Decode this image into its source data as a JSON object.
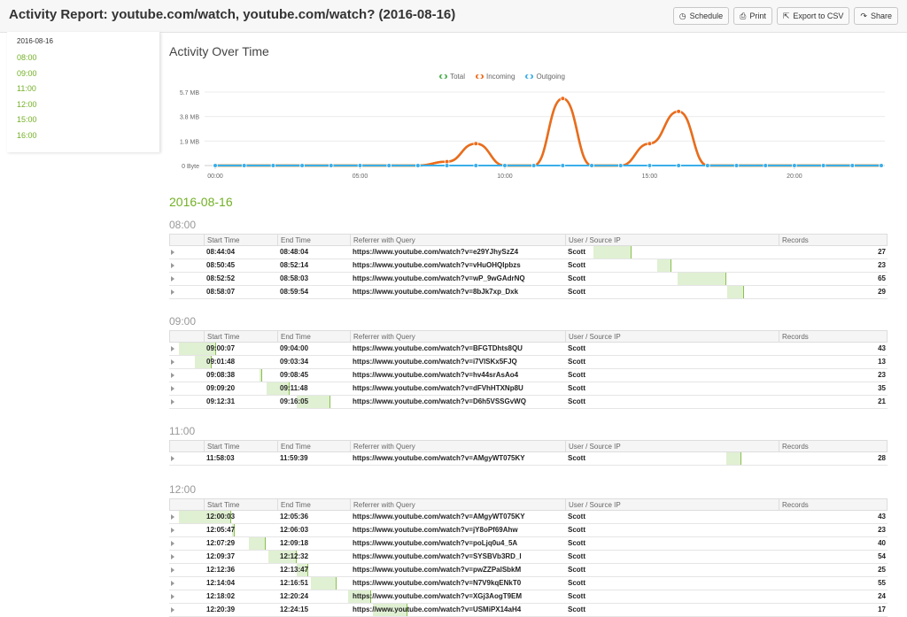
{
  "header": {
    "title": "Activity Report: youtube.com/watch, youtube.com/watch? (2016-08-16)",
    "buttons": [
      {
        "label": "Schedule",
        "icon": "clock-icon"
      },
      {
        "label": "Print",
        "icon": "printer-icon"
      },
      {
        "label": "Export to CSV",
        "icon": "export-icon"
      },
      {
        "label": "Share",
        "icon": "share-icon"
      }
    ]
  },
  "sidebar": {
    "date": "2016-08-16",
    "hours": [
      "08:00",
      "09:00",
      "11:00",
      "12:00",
      "15:00",
      "16:00"
    ]
  },
  "chart": {
    "title": "Activity Over Time",
    "legend": [
      {
        "name": "Total",
        "color": "#4caf50"
      },
      {
        "name": "Incoming",
        "color": "#f06a1b"
      },
      {
        "name": "Outgoing",
        "color": "#3aaee8"
      }
    ]
  },
  "chart_data": {
    "type": "line",
    "title": "Activity Over Time",
    "xlabel": "",
    "ylabel": "",
    "x": [
      0,
      1,
      2,
      3,
      4,
      5,
      6,
      7,
      8,
      9,
      10,
      11,
      12,
      13,
      14,
      15,
      16,
      17,
      18,
      19,
      20,
      21,
      22,
      23
    ],
    "x_tick_labels": [
      "00:00",
      "05:00",
      "10:00",
      "15:00",
      "20:00"
    ],
    "y_tick_labels": [
      "0 Byte",
      "1.9 MB",
      "3.8 MB",
      "5.7 MB"
    ],
    "ylim": [
      0,
      5.7
    ],
    "y_unit": "MB",
    "series": [
      {
        "name": "Total",
        "values": [
          0,
          0,
          0,
          0,
          0,
          0,
          0,
          0,
          0.3,
          1.7,
          0,
          0,
          5.2,
          0,
          0,
          1.7,
          4.2,
          0,
          0,
          0,
          0,
          0,
          0,
          0
        ]
      },
      {
        "name": "Incoming",
        "values": [
          0,
          0,
          0,
          0,
          0,
          0,
          0,
          0,
          0.3,
          1.7,
          0,
          0,
          5.2,
          0,
          0,
          1.7,
          4.2,
          0,
          0,
          0,
          0,
          0,
          0,
          0
        ]
      },
      {
        "name": "Outgoing",
        "values": [
          0,
          0,
          0,
          0,
          0,
          0,
          0,
          0,
          0,
          0,
          0,
          0,
          0,
          0,
          0,
          0,
          0,
          0,
          0,
          0,
          0,
          0,
          0,
          0
        ]
      }
    ],
    "grid": true,
    "legend_position": "top-center"
  },
  "report": {
    "date": "2016-08-16",
    "columns": [
      "Start Time",
      "End Time",
      "Referrer with Query",
      "User / Source IP",
      "Records"
    ],
    "groups": [
      {
        "hour": "08:00",
        "rows": [
          {
            "start": "08:44:04",
            "end": "08:48:04",
            "ref": "https://www.youtube.com/watch?v=e29YJhySzZ4",
            "user": "Scott",
            "records": "27",
            "bar_start": 0.733,
            "bar_len": 0.067
          },
          {
            "start": "08:50:45",
            "end": "08:52:14",
            "ref": "https://www.youtube.com/watch?v=vHuOHQIpbzs",
            "user": "Scott",
            "records": "23",
            "bar_start": 0.845,
            "bar_len": 0.025
          },
          {
            "start": "08:52:52",
            "end": "08:58:03",
            "ref": "https://www.youtube.com/watch?v=wP_9wGAdrNQ",
            "user": "Scott",
            "records": "65",
            "bar_start": 0.881,
            "bar_len": 0.086
          },
          {
            "start": "08:58:07",
            "end": "08:59:54",
            "ref": "https://www.youtube.com/watch?v=8bJk7xp_Dxk",
            "user": "Scott",
            "records": "29",
            "bar_start": 0.969,
            "bar_len": 0.03
          }
        ]
      },
      {
        "hour": "09:00",
        "rows": [
          {
            "start": "09:00:07",
            "end": "09:04:00",
            "ref": "https://www.youtube.com/watch?v=BFGTDhts8QU",
            "user": "Scott",
            "records": "43",
            "bar_start": 0.002,
            "bar_len": 0.065
          },
          {
            "start": "09:01:48",
            "end": "09:03:34",
            "ref": "https://www.youtube.com/watch?v=i7VlSKx5FJQ",
            "user": "Scott",
            "records": "13",
            "bar_start": 0.03,
            "bar_len": 0.03
          },
          {
            "start": "09:08:38",
            "end": "09:08:45",
            "ref": "https://www.youtube.com/watch?v=hv44srAsAo4",
            "user": "Scott",
            "records": "23",
            "bar_start": 0.144,
            "bar_len": 0.003
          },
          {
            "start": "09:09:20",
            "end": "09:11:48",
            "ref": "https://www.youtube.com/watch?v=dFVhHTXNp8U",
            "user": "Scott",
            "records": "35",
            "bar_start": 0.156,
            "bar_len": 0.041
          },
          {
            "start": "09:12:31",
            "end": "09:16:05",
            "ref": "https://www.youtube.com/watch?v=D6h5VSSGvWQ",
            "user": "Scott",
            "records": "21",
            "bar_start": 0.209,
            "bar_len": 0.059
          }
        ]
      },
      {
        "hour": "11:00",
        "rows": [
          {
            "start": "11:58:03",
            "end": "11:59:39",
            "ref": "https://www.youtube.com/watch?v=AMgyWT075KY",
            "user": "Scott",
            "records": "28",
            "bar_start": 0.967,
            "bar_len": 0.027
          }
        ]
      },
      {
        "hour": "12:00",
        "rows": [
          {
            "start": "12:00:03",
            "end": "12:05:36",
            "ref": "https://www.youtube.com/watch?v=AMgyWT075KY",
            "user": "Scott",
            "records": "43",
            "bar_start": 0.001,
            "bar_len": 0.092
          },
          {
            "start": "12:05:47",
            "end": "12:06:03",
            "ref": "https://www.youtube.com/watch?v=jY8oPf69Ahw",
            "user": "Scott",
            "records": "23",
            "bar_start": 0.096,
            "bar_len": 0.004
          },
          {
            "start": "12:07:29",
            "end": "12:09:18",
            "ref": "https://www.youtube.com/watch?v=poLjq0u4_5A",
            "user": "Scott",
            "records": "40",
            "bar_start": 0.125,
            "bar_len": 0.03
          },
          {
            "start": "12:09:37",
            "end": "12:12:32",
            "ref": "https://www.youtube.com/watch?v=SYSBVb3RD_I",
            "user": "Scott",
            "records": "54",
            "bar_start": 0.16,
            "bar_len": 0.049
          },
          {
            "start": "12:12:36",
            "end": "12:13:47",
            "ref": "https://www.youtube.com/watch?v=pwZZPalSbkM",
            "user": "Scott",
            "records": "25",
            "bar_start": 0.21,
            "bar_len": 0.02
          },
          {
            "start": "12:14:04",
            "end": "12:16:51",
            "ref": "https://www.youtube.com/watch?v=N7V9kqENkT0",
            "user": "Scott",
            "records": "55",
            "bar_start": 0.234,
            "bar_len": 0.046
          },
          {
            "start": "12:18:02",
            "end": "12:20:24",
            "ref": "https://www.youtube.com/watch?v=XGj3AogT9EM",
            "user": "Scott",
            "records": "24",
            "bar_start": 0.3,
            "bar_len": 0.04
          },
          {
            "start": "12:20:39",
            "end": "12:24:15",
            "ref": "https://www.youtube.com/watch?v=USMiPX14aH4",
            "user": "Scott",
            "records": "17",
            "bar_start": 0.344,
            "bar_len": 0.06
          }
        ]
      }
    ]
  }
}
